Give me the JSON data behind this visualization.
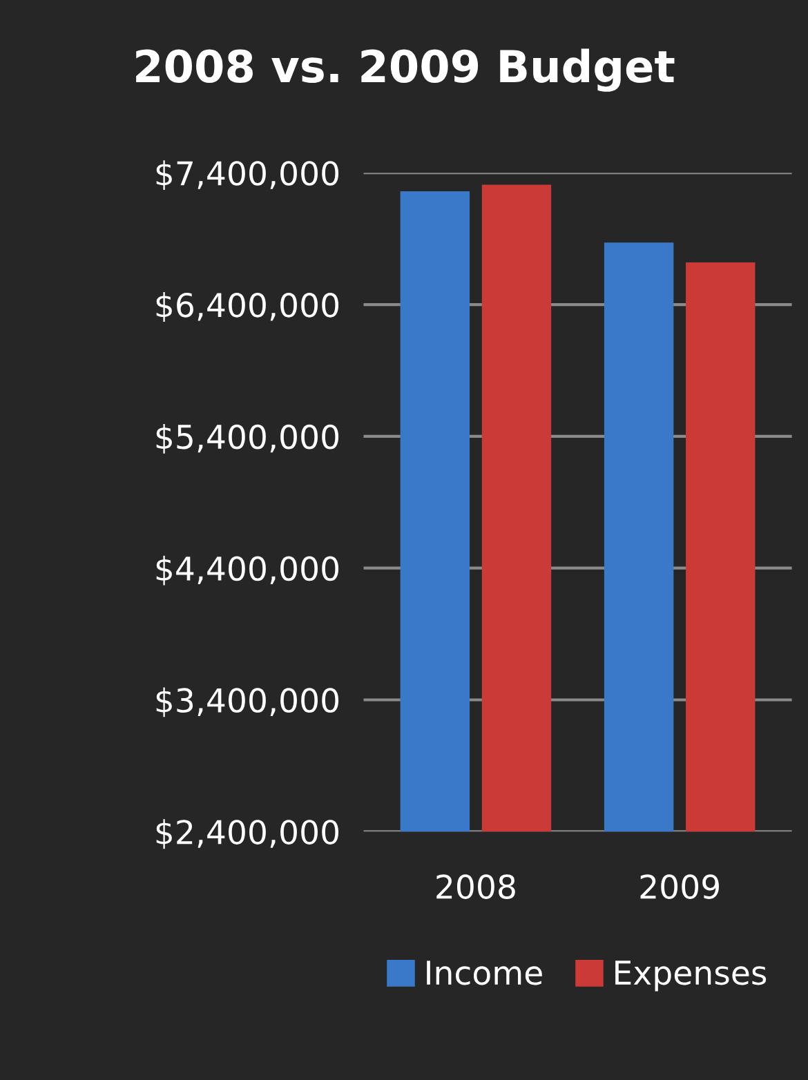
{
  "chart_data": {
    "type": "bar",
    "title": "2008 vs. 2009 Budget",
    "categories": [
      "2008",
      "2009"
    ],
    "series": [
      {
        "name": "Income",
        "color": "#3a78c9",
        "values": [
          7260000,
          6870000
        ]
      },
      {
        "name": "Expenses",
        "color": "#cc3a38",
        "values": [
          7310000,
          6720000
        ]
      }
    ],
    "ylim": [
      2400000,
      7400000
    ],
    "yticks": [
      {
        "value": 2400000,
        "label": "$2,400,000"
      },
      {
        "value": 3400000,
        "label": "$3,400,000"
      },
      {
        "value": 4400000,
        "label": "$4,400,000"
      },
      {
        "value": 5400000,
        "label": "$5,400,000"
      },
      {
        "value": 6400000,
        "label": "$6,400,000"
      },
      {
        "value": 7400000,
        "label": "$7,400,000"
      }
    ],
    "grid": "y",
    "legend": "bottom"
  }
}
